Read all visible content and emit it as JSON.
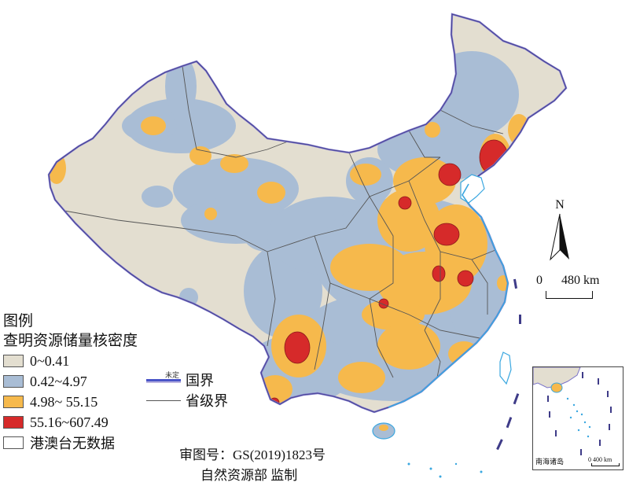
{
  "legend": {
    "title": "图例",
    "subtitle": "查明资源储量核密度",
    "classes": [
      {
        "label": "0~0.41",
        "color": "#e3ded0"
      },
      {
        "label": "0.42~4.97",
        "color": "#a9bdd5"
      },
      {
        "label": "4.98~ 55.15",
        "color": "#f6b94c"
      },
      {
        "label": "55.16~607.49",
        "color": "#d62a2a"
      },
      {
        "label": "港澳台无数据",
        "color": "#ffffff"
      }
    ],
    "lines": {
      "national": "国界",
      "undetermined": "未定",
      "provincial": "省级界"
    }
  },
  "approval_number": "审图号：GS(2019)1823号",
  "supervision": "自然资源部 监制",
  "north": "N",
  "scale": {
    "zero": "0",
    "distance": "480 km"
  },
  "inset": {
    "label": "南海诸岛",
    "scale": "0   400 km"
  }
}
